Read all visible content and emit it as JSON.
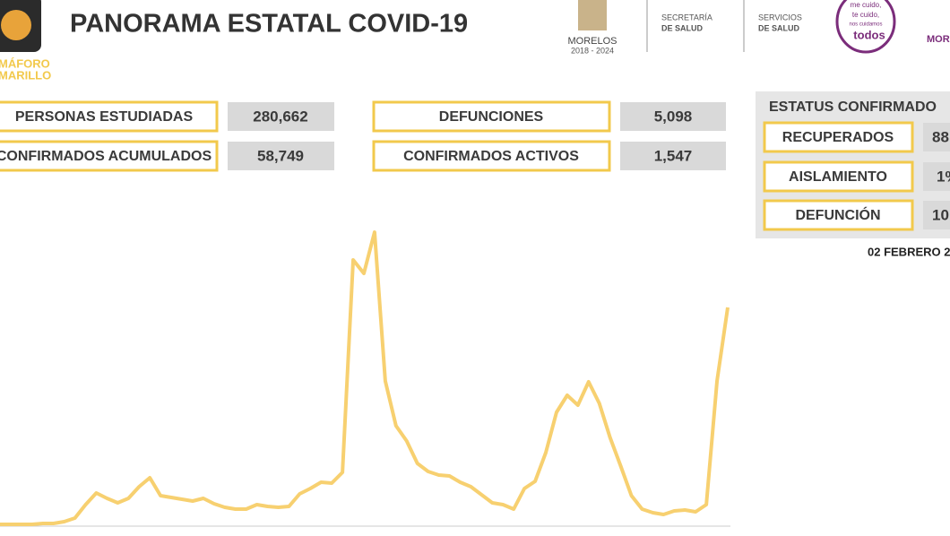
{
  "header": {
    "title": "PANORAMA ESTATAL COVID-19",
    "semaforo": [
      "MÁFORO",
      "MARILLO"
    ],
    "logos": [
      "MORELOS",
      "2018 - 2024",
      "SECRETARÍA",
      "DE SALUD",
      "SERVICIOS",
      "DE SALUD",
      "me cuido,",
      "te cuido,",
      "nos cuidamos",
      "todos",
      "MORE"
    ]
  },
  "stats": [
    {
      "label": "PERSONAS ESTUDIADAS",
      "value": "280,662"
    },
    {
      "label": "DEFUNCIONES",
      "value": "5,098"
    },
    {
      "label": "CONFIRMADOS ACUMULADOS",
      "value": "58,749"
    },
    {
      "label": "CONFIRMADOS ACTIVOS",
      "value": "1,547"
    }
  ],
  "status": {
    "title": "ESTATUS CONFIRMADO",
    "rows": [
      {
        "label": "RECUPERADOS",
        "value": "88"
      },
      {
        "label": "AISLAMIENTO",
        "value": "1%"
      },
      {
        "label": "DEFUNCIÓN",
        "value": "10"
      }
    ],
    "date": "02 FEBRERO 2"
  },
  "chart_data": {
    "type": "line",
    "color": "#f7d070",
    "ylim": [
      0,
      340
    ],
    "values": [
      0,
      0,
      0,
      0,
      1,
      1,
      3,
      7,
      22,
      35,
      29,
      24,
      29,
      42,
      52,
      32,
      30,
      28,
      26,
      29,
      23,
      19,
      17,
      17,
      22,
      20,
      19,
      20,
      34,
      40,
      47,
      46,
      58,
      295,
      280,
      326,
      160,
      110,
      93,
      68,
      59,
      55,
      54,
      47,
      42,
      33,
      24,
      22,
      17,
      40,
      48,
      80,
      125,
      144,
      133,
      159,
      135,
      97,
      65,
      32,
      17,
      13,
      11,
      15,
      16,
      14,
      22,
      160,
      242
    ]
  }
}
